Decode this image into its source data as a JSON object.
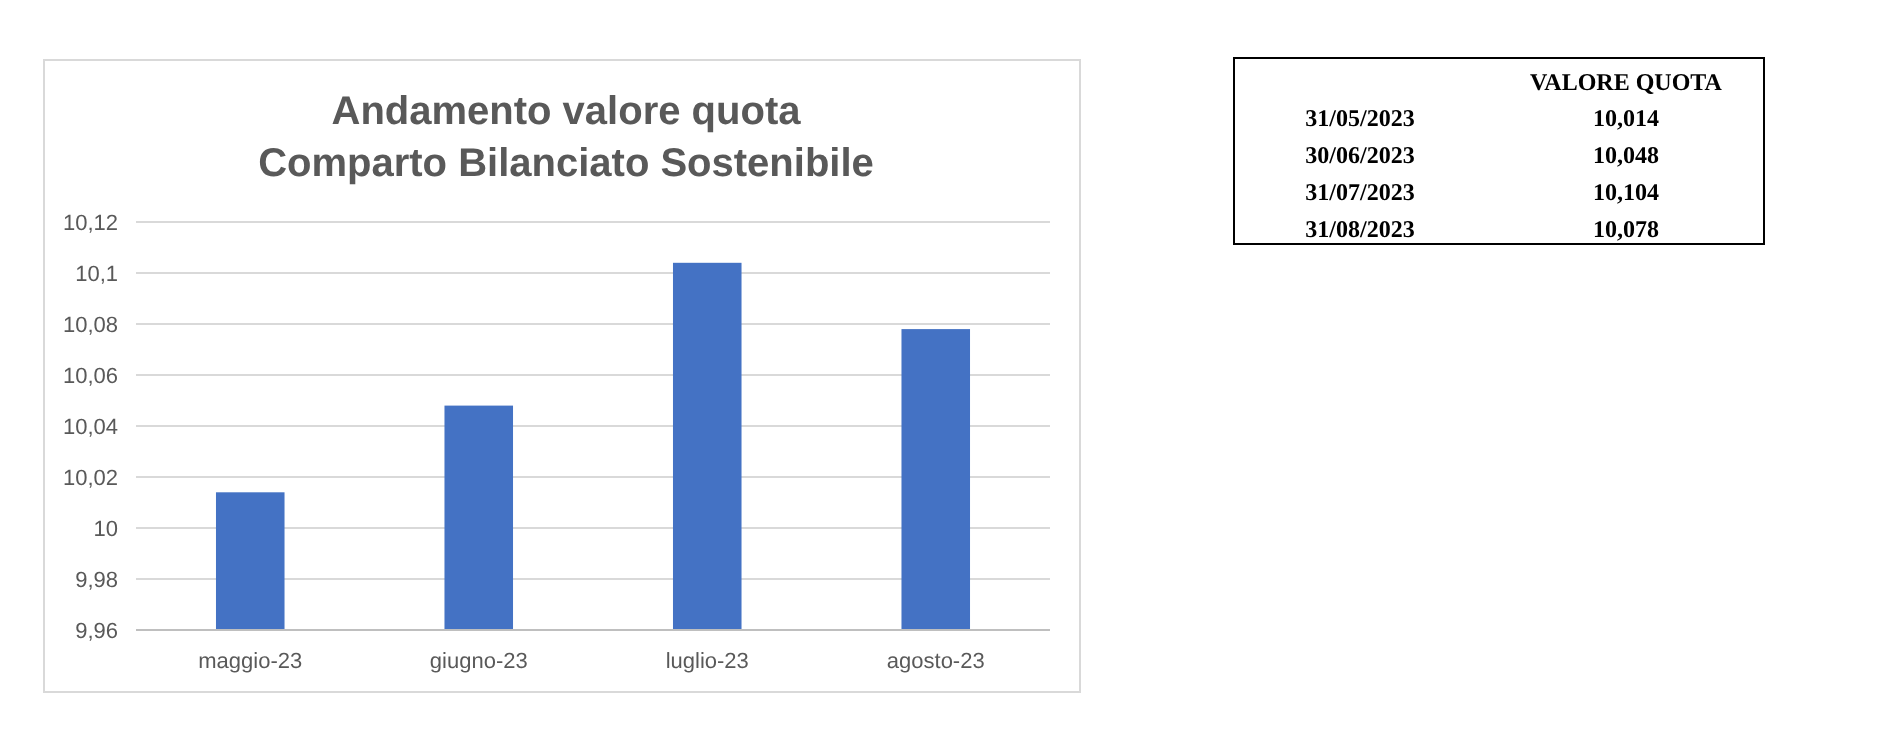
{
  "chart_data": [
    {
      "type": "bar",
      "title": "Andamento valore quota\nComparto Bilanciato Sostenibile",
      "categories": [
        "maggio-23",
        "giugno-23",
        "luglio-23",
        "agosto-23"
      ],
      "values": [
        10.014,
        10.048,
        10.104,
        10.078
      ],
      "color": "#4472c4",
      "ylim": [
        9.96,
        10.12
      ],
      "yticks": [
        {
          "value": 9.96,
          "label": "9,96"
        },
        {
          "value": 9.98,
          "label": "9,98"
        },
        10,
        {
          "value": 10.02,
          "label": "10,02"
        },
        {
          "value": 10.04,
          "label": "10,04"
        },
        {
          "value": 10.06,
          "label": "10,06"
        },
        {
          "value": 10.08,
          "label": "10,08"
        },
        {
          "value": 10.1,
          "label": "10,1"
        },
        {
          "value": 10.12,
          "label": "10,12"
        }
      ],
      "grid": "y"
    },
    {
      "type": "other",
      "annotations": [
        "VALORE QUOTA",
        "31/05/2023",
        "10,014",
        "30/06/2023",
        "10,048",
        "31/07/2023",
        "10,104",
        "31/08/2023",
        "10,078"
      ]
    }
  ]
}
